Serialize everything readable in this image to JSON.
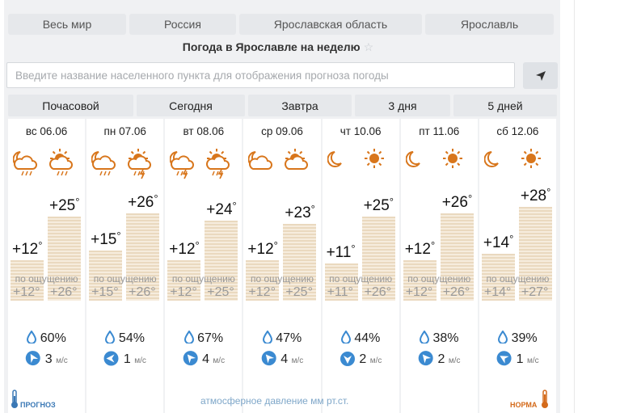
{
  "nav": [
    "Весь мир",
    "Россия",
    "Ярославская область",
    "Ярославль"
  ],
  "page_title": "Погода в Ярославле на неделю",
  "search": {
    "placeholder": "Введите название населенного пункта для отображения прогноза погоды",
    "value": ""
  },
  "tabs": [
    "Почасовой",
    "Сегодня",
    "Завтра",
    "3 дня",
    "5 дней"
  ],
  "feels_label": "по ощущению",
  "days": [
    {
      "date": "вс 06.06",
      "night_icon": "moon-cloud-rain-icon",
      "day_icon": "sun-cloud-rain-icon",
      "night_temp": "+12°",
      "day_temp": "+25°",
      "night_feel": "+12°",
      "day_feel": "+26°",
      "humidity": "60%",
      "wind_speed": "3",
      "wind_unit": "м/с"
    },
    {
      "date": "пн 07.06",
      "night_icon": "moon-cloud-rain-icon",
      "day_icon": "sun-cloud-storm-icon",
      "night_temp": "+15°",
      "day_temp": "+26°",
      "night_feel": "+15°",
      "day_feel": "+26°",
      "humidity": "54%",
      "wind_speed": "1",
      "wind_unit": "м/с"
    },
    {
      "date": "вт 08.06",
      "night_icon": "moon-cloud-storm-icon",
      "day_icon": "sun-cloud-storm-icon",
      "night_temp": "+12°",
      "day_temp": "+24°",
      "night_feel": "+12°",
      "day_feel": "+25°",
      "humidity": "67%",
      "wind_speed": "4",
      "wind_unit": "м/с"
    },
    {
      "date": "ср 09.06",
      "night_icon": "moon-cloud-icon",
      "day_icon": "sun-cloud-icon",
      "night_temp": "+12°",
      "day_temp": "+23°",
      "night_feel": "+12°",
      "day_feel": "+25°",
      "humidity": "47%",
      "wind_speed": "4",
      "wind_unit": "м/с"
    },
    {
      "date": "чт 10.06",
      "night_icon": "moon-icon",
      "day_icon": "sun-icon",
      "night_temp": "+11°",
      "day_temp": "+25°",
      "night_feel": "+11°",
      "day_feel": "+26°",
      "humidity": "44%",
      "wind_speed": "2",
      "wind_unit": "м/с"
    },
    {
      "date": "пт 11.06",
      "night_icon": "moon-icon",
      "day_icon": "sun-icon",
      "night_temp": "+12°",
      "day_temp": "+26°",
      "night_feel": "+12°",
      "day_feel": "+26°",
      "humidity": "38%",
      "wind_speed": "2",
      "wind_unit": "м/с"
    },
    {
      "date": "сб 12.06",
      "night_icon": "moon-icon",
      "day_icon": "sun-icon",
      "night_temp": "+14°",
      "day_temp": "+28°",
      "night_feel": "+14°",
      "day_feel": "+27°",
      "humidity": "39%",
      "wind_speed": "1",
      "wind_unit": "м/с"
    }
  ],
  "bottom": {
    "forecast": "ПРОГНОЗ",
    "pressure": "атмосферное давление  мм рт.ст.",
    "norm": "НОРМА"
  },
  "colors": {
    "weather_orange": "#d8761c",
    "drop_blue": "#3b8ad1",
    "bar_stripe": "#ead9bf"
  }
}
